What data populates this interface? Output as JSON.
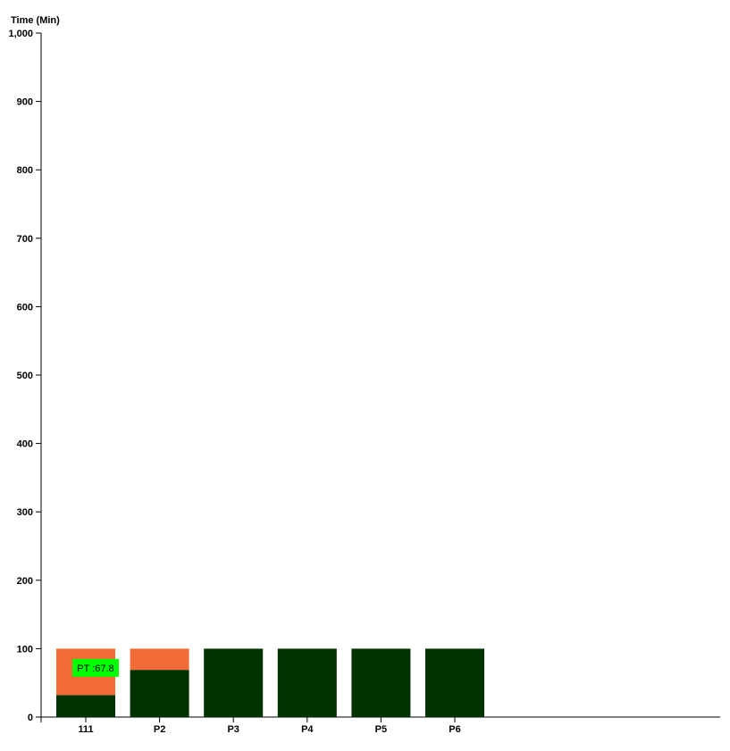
{
  "chart_data": {
    "type": "bar",
    "stacked": true,
    "ylabel": "Time (Min)",
    "ylim": [
      0,
      1000
    ],
    "yticks": [
      "0",
      "100",
      "200",
      "300",
      "400",
      "500",
      "600",
      "700",
      "800",
      "900",
      "1,000"
    ],
    "ytick_values": [
      0,
      100,
      200,
      300,
      400,
      500,
      600,
      700,
      800,
      900,
      1000
    ],
    "grid": false,
    "categories": [
      "111",
      "P2",
      "P3",
      "P4",
      "P5",
      "P6"
    ],
    "series": [
      {
        "color": "#003300",
        "values": [
          32.2,
          69,
          100,
          100,
          100,
          100
        ]
      },
      {
        "color": "#f26a36",
        "values": [
          67.8,
          31,
          0,
          0,
          0,
          0
        ]
      }
    ],
    "annotation": {
      "text": "PT :67.8",
      "category": "111",
      "value": 72,
      "color": "#00ff00"
    }
  }
}
